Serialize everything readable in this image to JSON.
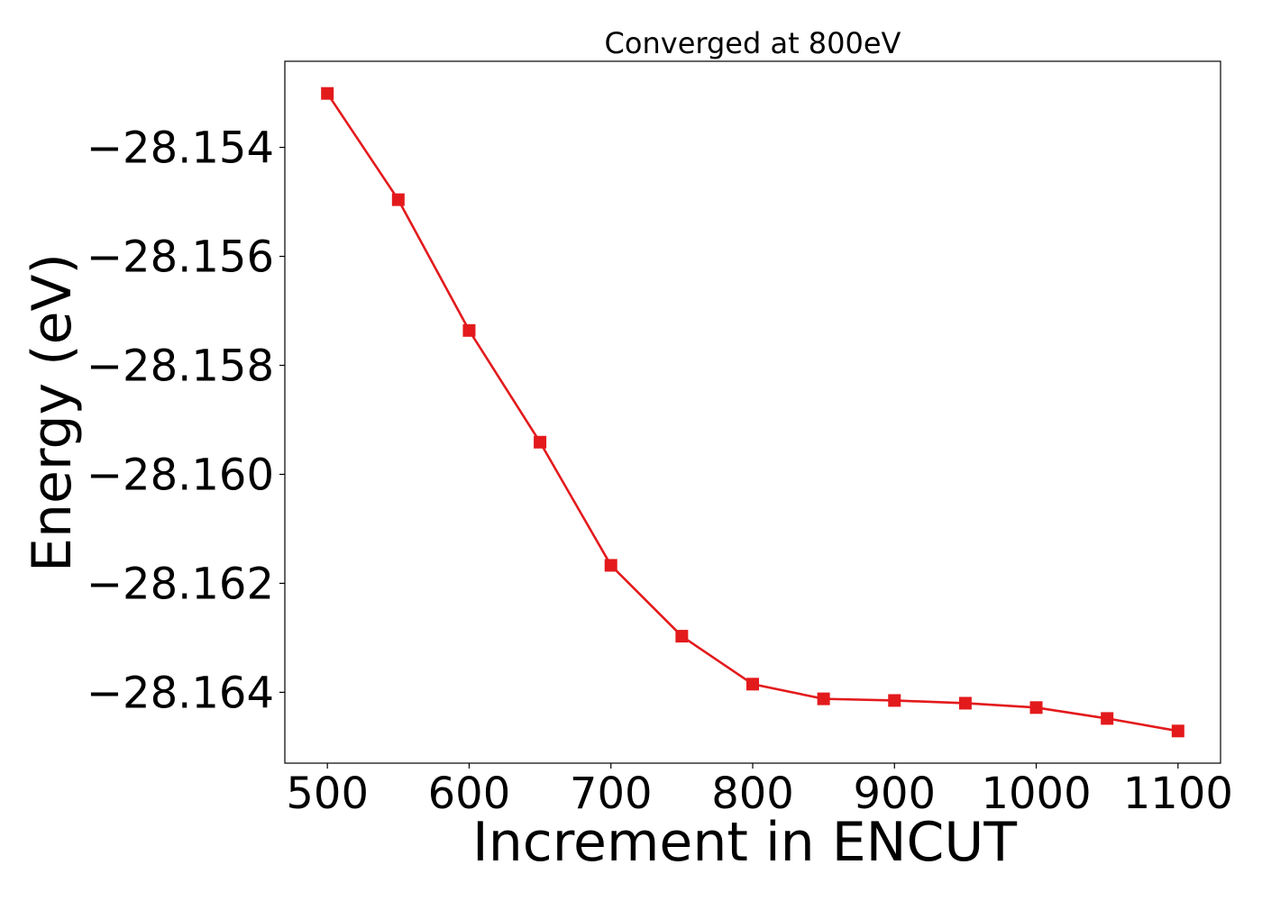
{
  "chart_data": {
    "type": "line",
    "title": "Converged at 800eV",
    "xlabel": "Increment in ENCUT",
    "ylabel": "Energy (eV)",
    "x": [
      500,
      550,
      600,
      650,
      700,
      750,
      800,
      850,
      900,
      950,
      1000,
      1050,
      1100
    ],
    "series": [
      {
        "name": "Energy",
        "color": "#e31a1c",
        "marker": "square",
        "values": [
          -28.15301,
          -28.15496,
          -28.15736,
          -28.15941,
          -28.16167,
          -28.16297,
          -28.16385,
          -28.16412,
          -28.16415,
          -28.1642,
          -28.16428,
          -28.16448,
          -28.16471
        ]
      }
    ],
    "xticks": [
      500,
      600,
      700,
      800,
      900,
      1000,
      1100
    ],
    "xtick_labels": [
      "500",
      "600",
      "700",
      "800",
      "900",
      "1000",
      "1100"
    ],
    "yticks": [
      -28.154,
      -28.156,
      -28.158,
      -28.16,
      -28.162,
      -28.164
    ],
    "ytick_labels": [
      "−28.154",
      "−28.156",
      "−28.158",
      "−28.160",
      "−28.162",
      "−28.164"
    ],
    "xlim": [
      470,
      1130
    ],
    "ylim": [
      -28.1653,
      -28.15242
    ],
    "grid": false,
    "legend": "none"
  }
}
